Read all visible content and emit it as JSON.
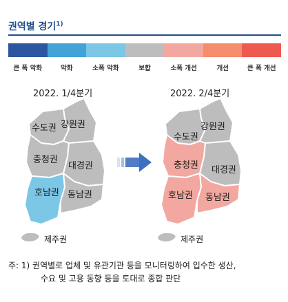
{
  "title": "권역별 경기",
  "title_footnote_mark": "1)",
  "legend": [
    {
      "label": "큰 폭 악화",
      "color": "#2c57a0"
    },
    {
      "label": "악화",
      "color": "#43a2d8"
    },
    {
      "label": "소폭 악화",
      "color": "#7cc6e6"
    },
    {
      "label": "보합",
      "color": "#bdbdbd"
    },
    {
      "label": "소폭 개선",
      "color": "#f2a8a0"
    },
    {
      "label": "개선",
      "color": "#f58c6c"
    },
    {
      "label": "큰 폭 개선",
      "color": "#ee5a4f"
    }
  ],
  "maps": [
    {
      "period": "2022. 1/4분기",
      "regions": [
        {
          "name": "수도권",
          "status": "보합",
          "color": "#bdbdbd"
        },
        {
          "name": "강원권",
          "status": "보합",
          "color": "#bdbdbd"
        },
        {
          "name": "충청권",
          "status": "보합",
          "color": "#bdbdbd"
        },
        {
          "name": "대경권",
          "status": "보합",
          "color": "#bdbdbd"
        },
        {
          "name": "호남권",
          "status": "소폭 악화",
          "color": "#7cc6e6"
        },
        {
          "name": "동남권",
          "status": "보합",
          "color": "#bdbdbd"
        },
        {
          "name": "제주권",
          "status": "보합",
          "color": "#bdbdbd"
        }
      ]
    },
    {
      "period": "2022. 2/4분기",
      "regions": [
        {
          "name": "수도권",
          "status": "보합",
          "color": "#bdbdbd"
        },
        {
          "name": "강원권",
          "status": "보합",
          "color": "#bdbdbd"
        },
        {
          "name": "충청권",
          "status": "소폭 개선",
          "color": "#f2a8a0"
        },
        {
          "name": "대경권",
          "status": "보합",
          "color": "#bdbdbd"
        },
        {
          "name": "호남권",
          "status": "소폭 개선",
          "color": "#f2a8a0"
        },
        {
          "name": "동남권",
          "status": "소폭 개선",
          "color": "#f2a8a0"
        },
        {
          "name": "제주권",
          "status": "보합",
          "color": "#bdbdbd"
        }
      ]
    }
  ],
  "arrow_color": "#3e6fc0",
  "note": {
    "prefix": "주: 1)",
    "line1": "권역별로 업체 및 유관기관 등을 모니터링하여 입수한 생산,",
    "line2": "수요 및 고용 동향 등을 토대로 종합 판단"
  }
}
